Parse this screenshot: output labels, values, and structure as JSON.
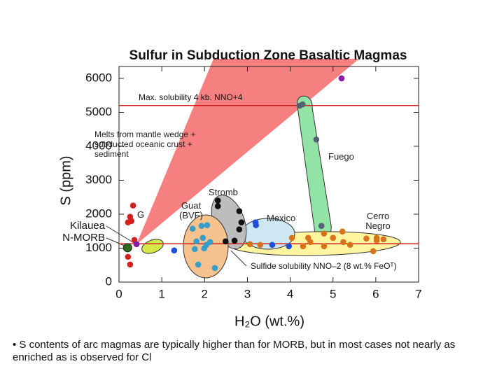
{
  "chart_data": {
    "type": "scatter",
    "title": "Sulfur in Subduction Zone Basaltic Magmas",
    "x_label": "H₂O (wt.%)",
    "y_label": "S (ppm)",
    "xlim": [
      0,
      7
    ],
    "ylim": [
      0,
      6350
    ],
    "xticks": [
      0,
      1,
      2,
      3,
      4,
      5,
      6,
      7
    ],
    "yticks": [
      0,
      1000,
      2000,
      3000,
      4000,
      5000,
      6000
    ],
    "hlines": [
      {
        "y": 5200,
        "label": "Max. solubility 4 kb. NNO+4",
        "color": "#d62020"
      },
      {
        "y": 1130,
        "label": "Sulfide solubility NNO–2 (8 wt.% FeOᵀ)",
        "color": "#d62020"
      }
    ],
    "annotations": [
      "Melts from mantle wedge + subducted oceanic crust + sediment",
      "Kilauea",
      "N-MORB"
    ],
    "series": [
      {
        "name": "G",
        "color": "#d42020",
        "x": [
          0.33,
          0.26,
          0.21,
          0.29,
          0.36,
          0.21,
          0.26
        ],
        "values": [
          2255,
          1924,
          1759,
          1800,
          1241,
          745,
          517
        ]
      },
      {
        "color": "#8a1aa8",
        "x": [
          5.2,
          0.41
        ],
        "values": [
          6000,
          1117
        ]
      },
      {
        "color": "#2d6a1e",
        "x": [
          0.2
        ],
        "values": [
          1014
        ]
      },
      {
        "name": "Guat (BVF)",
        "color": "#3a9cc8",
        "x": [
          1.72,
          1.93,
          2.06,
          1.96,
          1.99,
          1.77,
          1.81,
          2.13,
          1.85,
          2.24,
          2.04
        ],
        "values": [
          1573,
          1655,
          1676,
          1303,
          993,
          972,
          1200,
          1179,
          517,
          414,
          1096
        ]
      },
      {
        "name": "Stromb",
        "color": "#111111",
        "x": [
          2.31,
          2.31,
          2.81,
          2.86,
          2.81,
          2.49,
          2.7
        ],
        "values": [
          2400,
          2235,
          2090,
          1759,
          1552,
          1200,
          1220
        ]
      },
      {
        "name": "Mexico",
        "color": "#1f4fd8",
        "x": [
          1.29,
          3.19,
          3.2,
          3.58,
          3.97
        ],
        "values": [
          931,
          1759,
          1676,
          1097,
          1055
        ]
      },
      {
        "name": "Fuego",
        "color": "#556070",
        "x": [
          4.29,
          4.61,
          4.73,
          4.22
        ],
        "values": [
          5235,
          4200,
          1655,
          5193
        ]
      },
      {
        "name": "Cerro Negro",
        "color": "#d9731a",
        "x": [
          3.06,
          3.3,
          4.42,
          4.79,
          5.22,
          5.0,
          4.79,
          5.24,
          5.4,
          5.78,
          6.02,
          6.18,
          5.94,
          6.02,
          4.3,
          4.47,
          4.04
        ],
        "values": [
          1117,
          1097,
          1303,
          1428,
          1490,
          1303,
          1055,
          1179,
          1097,
          1283,
          1220,
          1262,
          910,
          1303,
          1055,
          1179,
          1303
        ]
      }
    ],
    "notes": [
      "• S contents of arc magmas are typically higher than for MORB, but in most cases not nearly as enriched as is observed for Cl"
    ]
  }
}
